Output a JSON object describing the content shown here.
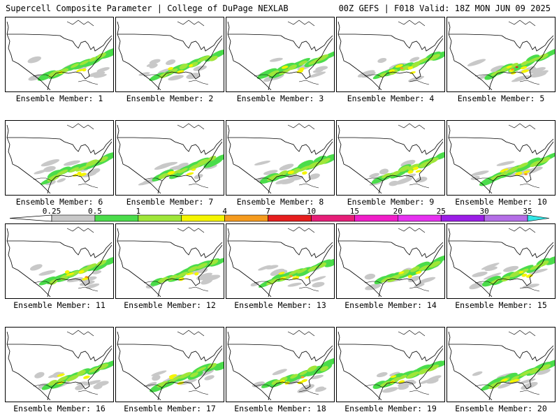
{
  "header": {
    "title": "Supercell Composite Parameter | College of DuPage NEXLAB",
    "run_info": "00Z GEFS | F018 Valid: 18Z MON JUN 09 2025"
  },
  "member_label_prefix": "Ensemble Member: ",
  "members": [
    1,
    2,
    3,
    4,
    5,
    6,
    7,
    8,
    9,
    10,
    11,
    12,
    13,
    14,
    15,
    16,
    17,
    18,
    19,
    20
  ],
  "colorbar": {
    "labels": [
      "0.25",
      "0.5",
      "1",
      "2",
      "4",
      "7",
      "10",
      "15",
      "20",
      "25",
      "30",
      "35"
    ],
    "colors": [
      "#c8c8c8",
      "#4bdc4b",
      "#9fe639",
      "#f5f500",
      "#f59b1e",
      "#e61e1e",
      "#e61e78",
      "#f01ec8",
      "#e632f0",
      "#9b1ee6",
      "#b46ee6",
      "#32e6e6"
    ]
  },
  "intensity_by_member": [
    1,
    1,
    1,
    2,
    3,
    1,
    1,
    1,
    1,
    2,
    2,
    1,
    2,
    1,
    1,
    1,
    1,
    2,
    1,
    1
  ]
}
